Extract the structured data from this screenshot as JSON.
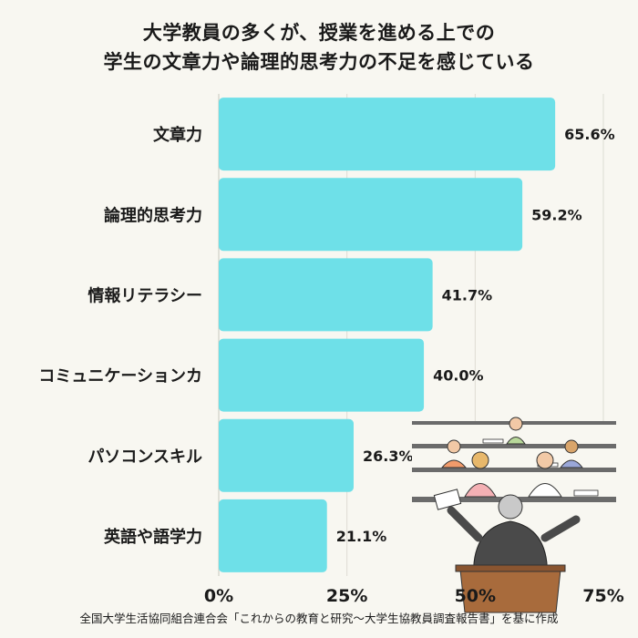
{
  "chart_data": {
    "type": "bar",
    "orientation": "horizontal",
    "title": "大学教員の多くが、授業を進める上での",
    "subtitle": "学生の文章力や論理的思考力の不足を感じている",
    "categories": [
      "文章力",
      "論理的思考力",
      "情報リテラシー",
      "コミュニケーションカ",
      "パソコンスキル",
      "英語や語学力"
    ],
    "values": [
      65.6,
      59.2,
      41.7,
      40.0,
      26.3,
      21.1
    ],
    "value_labels": [
      "65.6%",
      "59.2%",
      "41.7%",
      "40.0%",
      "26.3%",
      "21.1%"
    ],
    "xlim": [
      0,
      75
    ],
    "xticks": [
      0,
      25,
      50,
      75
    ],
    "xtick_labels": [
      "0%",
      "25%",
      "50%",
      "75%"
    ],
    "grid": true,
    "bar_color": "#6ee0e8",
    "source": "全国大学生活協同組合連合会「これからの教育と研究〜大学生協教員調査報告書」を基に作成"
  }
}
